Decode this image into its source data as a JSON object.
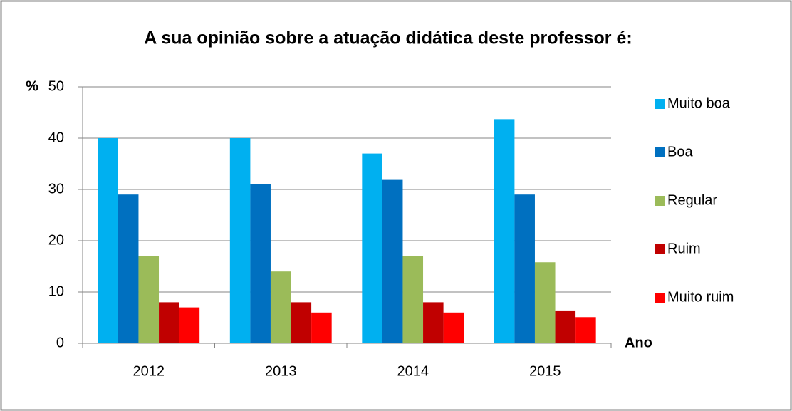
{
  "chart_data": {
    "type": "bar",
    "title": "A sua opinião sobre a atuação didática deste professor é:",
    "y_label": "%",
    "x_label": "Ano",
    "categories": [
      "2012",
      "2013",
      "2014",
      "2015"
    ],
    "series": [
      {
        "name": "Muito boa",
        "color": "#00b0f0",
        "values": [
          40,
          40,
          37,
          43.7
        ]
      },
      {
        "name": "Boa",
        "color": "#0070c0",
        "values": [
          29,
          31,
          32,
          29
        ]
      },
      {
        "name": "Regular",
        "color": "#9bbb59",
        "values": [
          17,
          14,
          17,
          15.8
        ]
      },
      {
        "name": "Ruim",
        "color": "#c00000",
        "values": [
          8,
          8,
          8,
          6.4
        ]
      },
      {
        "name": "Muito ruim",
        "color": "#ff0000",
        "values": [
          7,
          6,
          6,
          5.1
        ]
      }
    ],
    "ylim": [
      0,
      50
    ],
    "yticks": [
      0,
      10,
      20,
      30,
      40,
      50
    ],
    "grid": true,
    "legend": "right"
  }
}
